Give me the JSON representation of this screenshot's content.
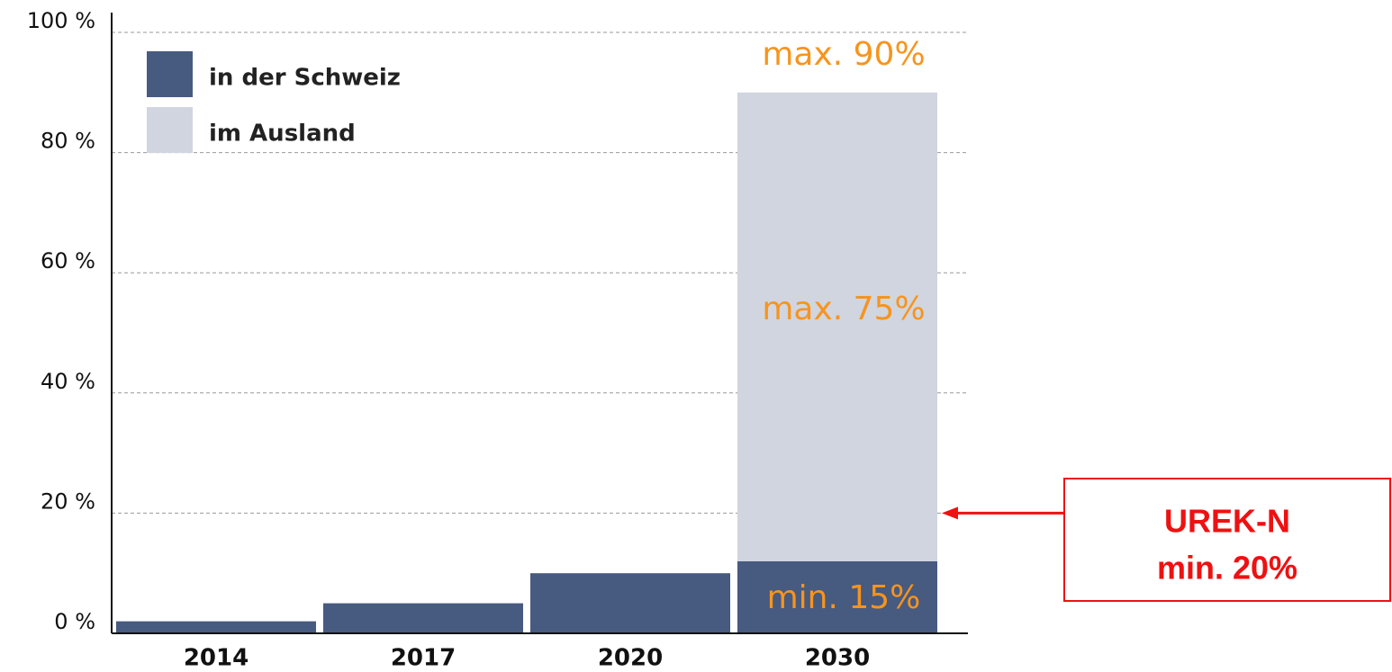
{
  "chart_data": {
    "type": "stacked_bar",
    "categories": [
      "2014",
      "2017",
      "2020",
      "2030"
    ],
    "series": [
      {
        "name": "in der Schweiz",
        "color": "#475a80",
        "values": [
          2,
          5,
          10,
          12
        ]
      },
      {
        "name": "im Ausland",
        "color": "#d0d5e0",
        "values": [
          null,
          null,
          null,
          78
        ]
      }
    ],
    "ylim": [
      0,
      100
    ],
    "yticks": [
      {
        "value": 0,
        "label": "0 %"
      },
      {
        "value": 20,
        "label": "20 %"
      },
      {
        "value": 40,
        "label": "40 %"
      },
      {
        "value": 60,
        "label": "60 %"
      },
      {
        "value": 80,
        "label": "80 %"
      },
      {
        "value": 100,
        "label": "100 %"
      }
    ],
    "grid": true,
    "legend": "top-left",
    "annotations": [
      "max. 90%",
      "max. 75%",
      "min. 15%"
    ],
    "annotation_color": "#f7941d",
    "callout": {
      "lines": [
        "UREK-N",
        "min. 20%"
      ],
      "value": 20,
      "color": "#ee1111"
    }
  }
}
